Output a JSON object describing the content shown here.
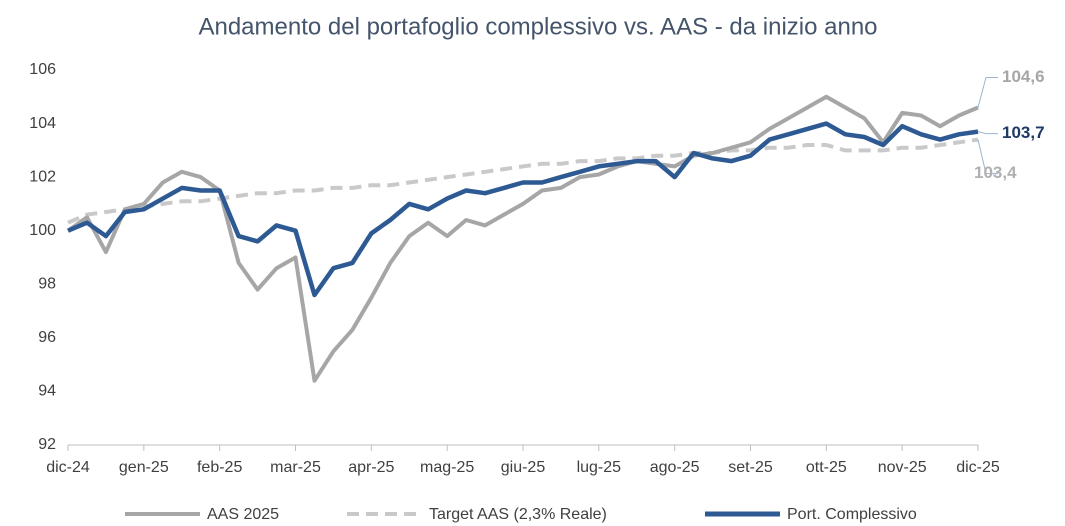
{
  "chart_data": {
    "type": "line",
    "title": "Andamento del portafoglio complessivo vs. AAS - da inizio anno",
    "categories": [
      "dic-24",
      null,
      null,
      null,
      "gen-25",
      null,
      null,
      null,
      "feb-25",
      null,
      null,
      null,
      "mar-25",
      null,
      null,
      null,
      "apr-25",
      null,
      null,
      null,
      "mag-25",
      null,
      null,
      null,
      "giu-25",
      null,
      null,
      null,
      "lug-25",
      null,
      null,
      null,
      "ago-25",
      null,
      null,
      null,
      "set-25",
      null,
      null,
      null,
      "ott-25",
      null,
      null,
      null,
      "nov-25",
      null,
      null,
      null,
      "dic-25"
    ],
    "series": [
      {
        "name": "AAS 2025",
        "color": "#a6a6a6",
        "dashed": false,
        "end_label": "104,6",
        "label_color": "#a6a6a6",
        "values": [
          100,
          100.5,
          99.2,
          100.8,
          101.0,
          101.8,
          102.2,
          102.0,
          101.5,
          98.8,
          97.8,
          98.6,
          99.0,
          94.4,
          95.5,
          96.3,
          97.5,
          98.8,
          99.8,
          100.3,
          99.8,
          100.4,
          100.2,
          100.6,
          101.0,
          101.5,
          101.6,
          102.0,
          102.1,
          102.4,
          102.6,
          102.5,
          102.4,
          102.8,
          102.9,
          103.1,
          103.3,
          103.8,
          104.2,
          104.6,
          105.0,
          104.6,
          104.2,
          103.3,
          104.4,
          104.3,
          103.9,
          104.3,
          104.6
        ]
      },
      {
        "name": "Target AAS (2,3% Reale)",
        "color": "#c9c9c9",
        "dashed": true,
        "end_label": "103,4",
        "label_color": "#b0b0b0",
        "values": [
          100.3,
          100.6,
          100.7,
          100.8,
          100.9,
          101.0,
          101.1,
          101.1,
          101.2,
          101.3,
          101.4,
          101.4,
          101.5,
          101.5,
          101.6,
          101.6,
          101.7,
          101.7,
          101.8,
          101.9,
          102.0,
          102.1,
          102.2,
          102.3,
          102.4,
          102.5,
          102.5,
          102.6,
          102.6,
          102.7,
          102.7,
          102.8,
          102.8,
          102.9,
          102.9,
          103.0,
          103.0,
          103.1,
          103.1,
          103.2,
          103.2,
          103.0,
          103.0,
          103.0,
          103.1,
          103.1,
          103.2,
          103.3,
          103.4
        ]
      },
      {
        "name": "Port. Complessivo",
        "color": "#2e5a94",
        "dashed": false,
        "end_label": "103,7",
        "label_color": "#1f3864",
        "values": [
          100,
          100.3,
          99.8,
          100.7,
          100.8,
          101.2,
          101.6,
          101.5,
          101.5,
          99.8,
          99.6,
          100.2,
          100.0,
          97.6,
          98.6,
          98.8,
          99.9,
          100.4,
          101.0,
          100.8,
          101.2,
          101.5,
          101.4,
          101.6,
          101.8,
          101.8,
          102.0,
          102.2,
          102.4,
          102.5,
          102.6,
          102.6,
          102.0,
          102.9,
          102.7,
          102.6,
          102.8,
          103.4,
          103.6,
          103.8,
          104.0,
          103.6,
          103.5,
          103.2,
          103.9,
          103.6,
          103.4,
          103.6,
          103.7
        ]
      }
    ],
    "ylim": [
      92,
      106
    ],
    "yticks": [
      92,
      94,
      96,
      98,
      100,
      102,
      104,
      106
    ],
    "grid": false,
    "legend": "bottom"
  }
}
